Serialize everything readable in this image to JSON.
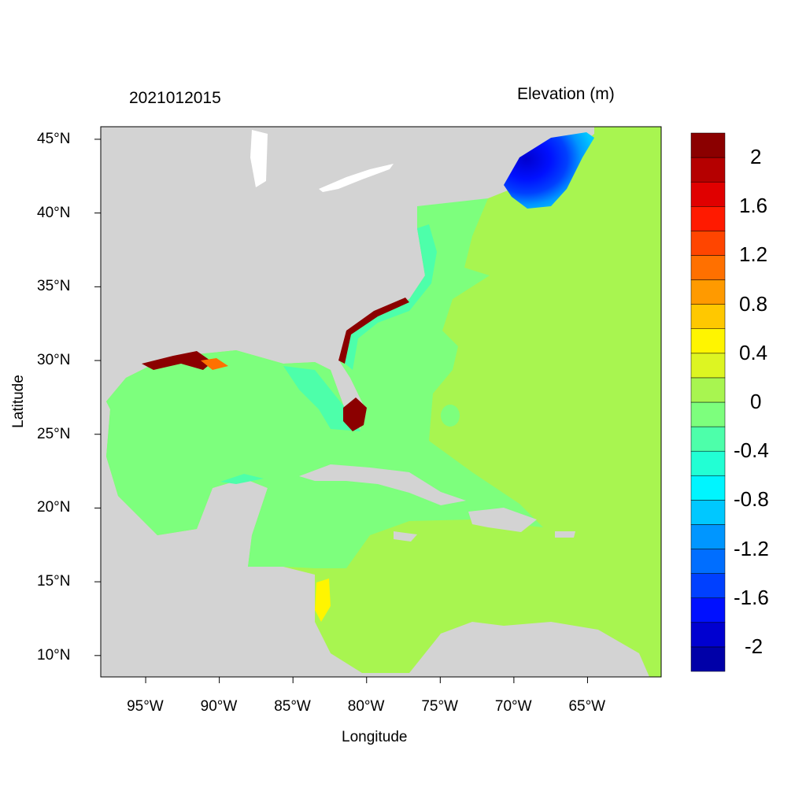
{
  "map": {
    "timestamp": "2021012015",
    "colorbar_title": "Elevation (m)",
    "xlabel": "Longitude",
    "ylabel": "Latitude",
    "lon_range": [
      -98.05,
      -60
    ],
    "lat_range": [
      8.55,
      45.85
    ],
    "lon_ticks": [
      {
        "v": -95,
        "label": "95°W"
      },
      {
        "v": -90,
        "label": "90°W"
      },
      {
        "v": -85,
        "label": "85°W"
      },
      {
        "v": -80,
        "label": "80°W"
      },
      {
        "v": -75,
        "label": "75°W"
      },
      {
        "v": -70,
        "label": "70°W"
      },
      {
        "v": -65,
        "label": "65°W"
      }
    ],
    "lat_ticks": [
      {
        "v": 45,
        "label": "45°N"
      },
      {
        "v": 40,
        "label": "40°N"
      },
      {
        "v": 35,
        "label": "35°N"
      },
      {
        "v": 30,
        "label": "30°N"
      },
      {
        "v": 25,
        "label": "25°N"
      },
      {
        "v": 20,
        "label": "20°N"
      },
      {
        "v": 15,
        "label": "15°N"
      },
      {
        "v": 10,
        "label": "10°N"
      }
    ],
    "colorbar": {
      "min": -2.2,
      "max": 2.2,
      "step": 0.2,
      "colors": [
        "#0000A8",
        "#0000D0",
        "#0010FF",
        "#0040FF",
        "#006EFF",
        "#0096FF",
        "#00C8FF",
        "#00F5FF",
        "#22FFD4",
        "#4DFFAA",
        "#7DFF7D",
        "#A8F550",
        "#DDF522",
        "#FFF500",
        "#FFC800",
        "#FF9A00",
        "#FF7000",
        "#FF4500",
        "#FF1A00",
        "#E00000",
        "#B50000",
        "#8B0000"
      ],
      "labels": [
        {
          "v": 2,
          "label": "2"
        },
        {
          "v": 1.6,
          "label": "1.6"
        },
        {
          "v": 1.2,
          "label": "1.2"
        },
        {
          "v": 0.8,
          "label": "0.8"
        },
        {
          "v": 0.4,
          "label": "0.4"
        },
        {
          "v": 0,
          "label": "0"
        },
        {
          "v": -0.4,
          "label": "-0.4"
        },
        {
          "v": -0.8,
          "label": "-0.8"
        },
        {
          "v": -1.2,
          "label": "-1.2"
        },
        {
          "v": -1.6,
          "label": "-1.6"
        },
        {
          "v": -2,
          "label": "-2"
        }
      ]
    },
    "land_color": "#D3D3D3"
  }
}
